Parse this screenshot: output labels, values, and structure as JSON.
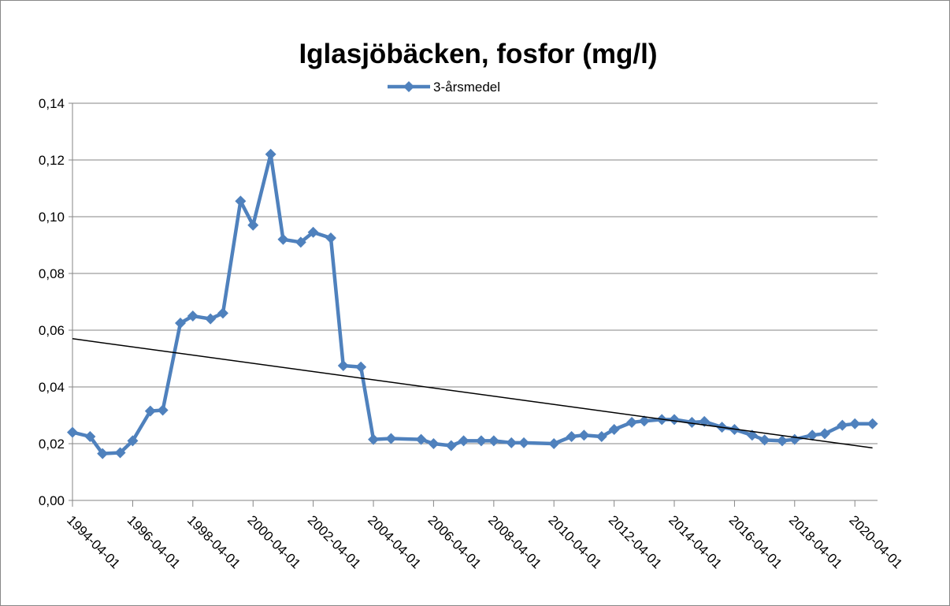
{
  "chart_data": {
    "type": "line",
    "title": "Iglasjöbäcken, fosfor (mg/l)",
    "x": [
      "1994-04-01",
      "1994-11-01",
      "1995-04-01",
      "1995-11-01",
      "1996-04-01",
      "1996-11-01",
      "1997-04-01",
      "1997-11-01",
      "1998-04-01",
      "1998-11-01",
      "1999-04-01",
      "1999-11-01",
      "2000-04-01",
      "2000-11-01",
      "2001-04-01",
      "2001-11-01",
      "2002-04-01",
      "2002-11-01",
      "2003-04-01",
      "2003-11-01",
      "2004-04-01",
      "2004-11-01",
      "2005-11-01",
      "2006-04-01",
      "2006-11-01",
      "2007-04-01",
      "2007-11-01",
      "2008-04-01",
      "2008-11-01",
      "2009-04-01",
      "2010-04-01",
      "2010-11-01",
      "2011-04-01",
      "2011-11-01",
      "2012-04-01",
      "2012-11-01",
      "2013-04-01",
      "2013-11-01",
      "2014-04-01",
      "2014-11-01",
      "2015-04-01",
      "2015-11-01",
      "2016-04-01",
      "2016-11-01",
      "2017-04-01",
      "2017-11-01",
      "2018-04-01",
      "2018-11-01",
      "2019-04-01",
      "2019-11-01",
      "2020-04-01",
      "2020-11-01"
    ],
    "series": [
      {
        "name": "3-årsmedel",
        "color": "#4f81bd",
        "values": [
          0.024,
          0.0225,
          0.0165,
          0.0168,
          0.021,
          0.0315,
          0.0318,
          0.0625,
          0.065,
          0.064,
          0.066,
          0.1055,
          0.097,
          0.122,
          0.092,
          0.091,
          0.0945,
          0.0925,
          0.0475,
          0.047,
          0.0215,
          0.0218,
          0.0215,
          0.02,
          0.0193,
          0.021,
          0.021,
          0.021,
          0.0203,
          0.0203,
          0.02,
          0.0225,
          0.023,
          0.0225,
          0.025,
          0.0275,
          0.028,
          0.0285,
          0.0285,
          0.0275,
          0.0278,
          0.0258,
          0.025,
          0.023,
          0.0213,
          0.021,
          0.0215,
          0.023,
          0.0235,
          0.0265,
          0.027,
          0.027
        ]
      }
    ],
    "trendline": {
      "color": "#000000",
      "x": [
        "1994-04-01",
        "2020-11-01"
      ],
      "values": [
        0.057,
        0.0185
      ]
    },
    "xlim": [
      "1994-04-01",
      "2021-01-01"
    ],
    "xticks": [
      "1994-04-01",
      "1996-04-01",
      "1998-04-01",
      "2000-04-01",
      "2002-04-01",
      "2004-04-01",
      "2006-04-01",
      "2008-04-01",
      "2010-04-01",
      "2012-04-01",
      "2014-04-01",
      "2016-04-01",
      "2018-04-01",
      "2020-04-01"
    ],
    "ylim": [
      0,
      0.14
    ],
    "yticks": [
      {
        "value": 0,
        "label": "0,00"
      },
      {
        "value": 0.02,
        "label": "0,02"
      },
      {
        "value": 0.04,
        "label": "0,04"
      },
      {
        "value": 0.06,
        "label": "0,06"
      },
      {
        "value": 0.08,
        "label": "0,08"
      },
      {
        "value": 0.1,
        "label": "0,10"
      },
      {
        "value": 0.12,
        "label": "0,12"
      },
      {
        "value": 0.14,
        "label": "0,14"
      }
    ],
    "grid": true,
    "legend": "top"
  }
}
